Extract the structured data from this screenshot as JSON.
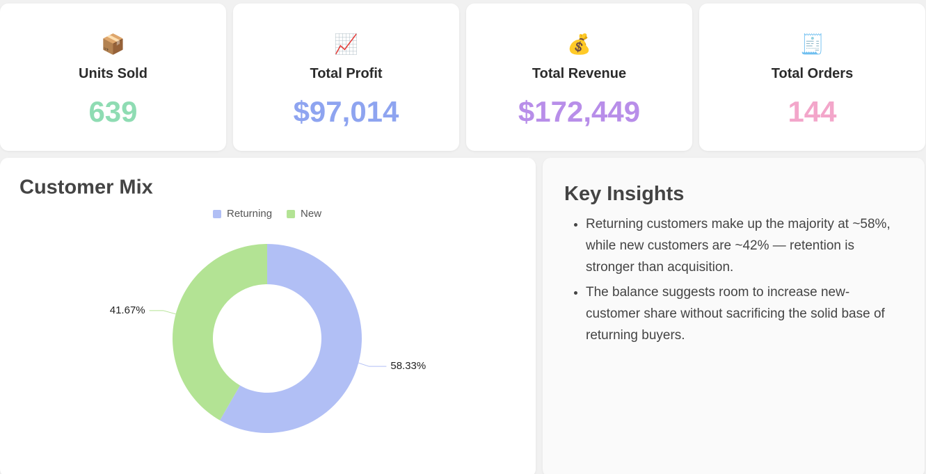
{
  "kpis": [
    {
      "icon": "📦",
      "label": "Units Sold",
      "value": "639",
      "color": "#8fdcb3"
    },
    {
      "icon": "📈",
      "label": "Total Profit",
      "value": "$97,014",
      "color": "#8ea4f0"
    },
    {
      "icon": "💰",
      "label": "Total Revenue",
      "value": "$172,449",
      "color": "#b88ee9"
    },
    {
      "icon": "🧾",
      "label": "Total Orders",
      "value": "144",
      "color": "#f3a6ca"
    }
  ],
  "chart_data": {
    "type": "pie",
    "donut": true,
    "title": "Customer Mix",
    "categories": [
      "Returning",
      "New"
    ],
    "values": [
      58.33,
      41.67
    ],
    "value_labels": [
      "58.33%",
      "41.67%"
    ],
    "colors": [
      "#b1bff5",
      "#b3e394"
    ],
    "legend": "top"
  },
  "insights": {
    "title": "Key Insights",
    "items": [
      "Returning customers make up the majority at ~58%, while new customers are ~42% — retention is stronger than acquisition.",
      "The balance suggests room to increase new-customer share without sacrificing the solid base of returning buyers."
    ]
  }
}
